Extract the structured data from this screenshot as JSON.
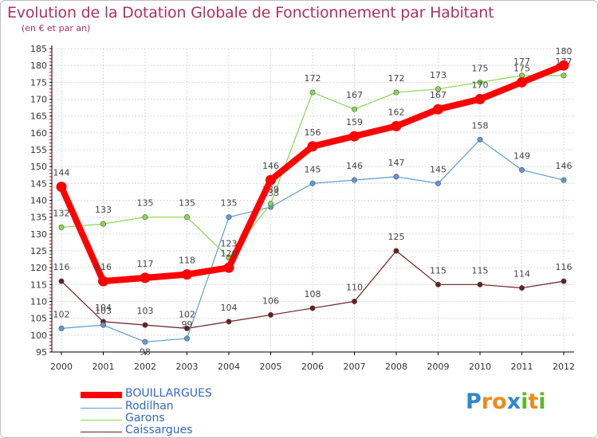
{
  "title": "Evolution de la Dotation Globale de Fonctionnement par Habitant",
  "subtitle": "(en € et par an)",
  "logo": {
    "text": "Proxiti",
    "letters": [
      {
        "ch": "P",
        "color": "#2e88cc"
      },
      {
        "ch": "r",
        "color": "#f08a1c"
      },
      {
        "ch": "o",
        "color": "#f08a1c"
      },
      {
        "ch": "x",
        "color": "#2e88cc"
      },
      {
        "ch": "i",
        "color": "#5ab82e"
      },
      {
        "ch": "t",
        "color": "#f08a1c"
      },
      {
        "ch": "i",
        "color": "#5ab82e"
      }
    ]
  },
  "chart_data": {
    "type": "line",
    "title": "Evolution de la Dotation Globale de Fonctionnement par Habitant",
    "ylabel": "(en € et par an)",
    "xlabel": "",
    "categories": [
      "2000",
      "2001",
      "2002",
      "2003",
      "2004",
      "2005",
      "2006",
      "2007",
      "2008",
      "2009",
      "2010",
      "2011",
      "2012"
    ],
    "ylim": [
      95,
      185
    ],
    "yticks": [
      95,
      100,
      105,
      110,
      115,
      120,
      125,
      130,
      135,
      140,
      145,
      150,
      155,
      160,
      165,
      170,
      175,
      180,
      185
    ],
    "grid": true,
    "series": [
      {
        "name": "BOUILLARGUES",
        "color": "#ff0000",
        "values": [
          144,
          116,
          117,
          118,
          120,
          146,
          156,
          159,
          162,
          167,
          170,
          175,
          180
        ]
      },
      {
        "name": "Rodilhan",
        "color": "#5b9bd5",
        "values": [
          102,
          103,
          98,
          99,
          135,
          138,
          145,
          146,
          147,
          145,
          158,
          149,
          146
        ]
      },
      {
        "name": "Garons",
        "color": "#86d94e",
        "values": [
          132,
          133,
          135,
          135,
          123,
          139,
          172,
          167,
          172,
          173,
          175,
          177,
          177
        ]
      },
      {
        "name": "Caissargues",
        "color": "#6b1e1e",
        "values": [
          116,
          104,
          103,
          102,
          104,
          106,
          108,
          110,
          125,
          115,
          115,
          114,
          116
        ]
      }
    ],
    "data_labels": [
      [
        "144",
        "116",
        "117",
        "118",
        "120",
        "146",
        "156",
        "159",
        "162",
        "167",
        "170",
        "175",
        "180"
      ],
      [
        "102",
        "103",
        "98",
        "99",
        "135",
        "138",
        "145",
        "146",
        "147",
        "145",
        "158",
        "149",
        "146"
      ],
      [
        "132",
        "133",
        "135",
        "135",
        "123",
        "139",
        "172",
        "167",
        "172",
        "173",
        "175",
        "177",
        "177"
      ],
      [
        "116",
        "104",
        "103",
        "102",
        "104",
        "106",
        "108",
        "110",
        "125",
        "115",
        "115",
        "114",
        "116"
      ]
    ]
  }
}
